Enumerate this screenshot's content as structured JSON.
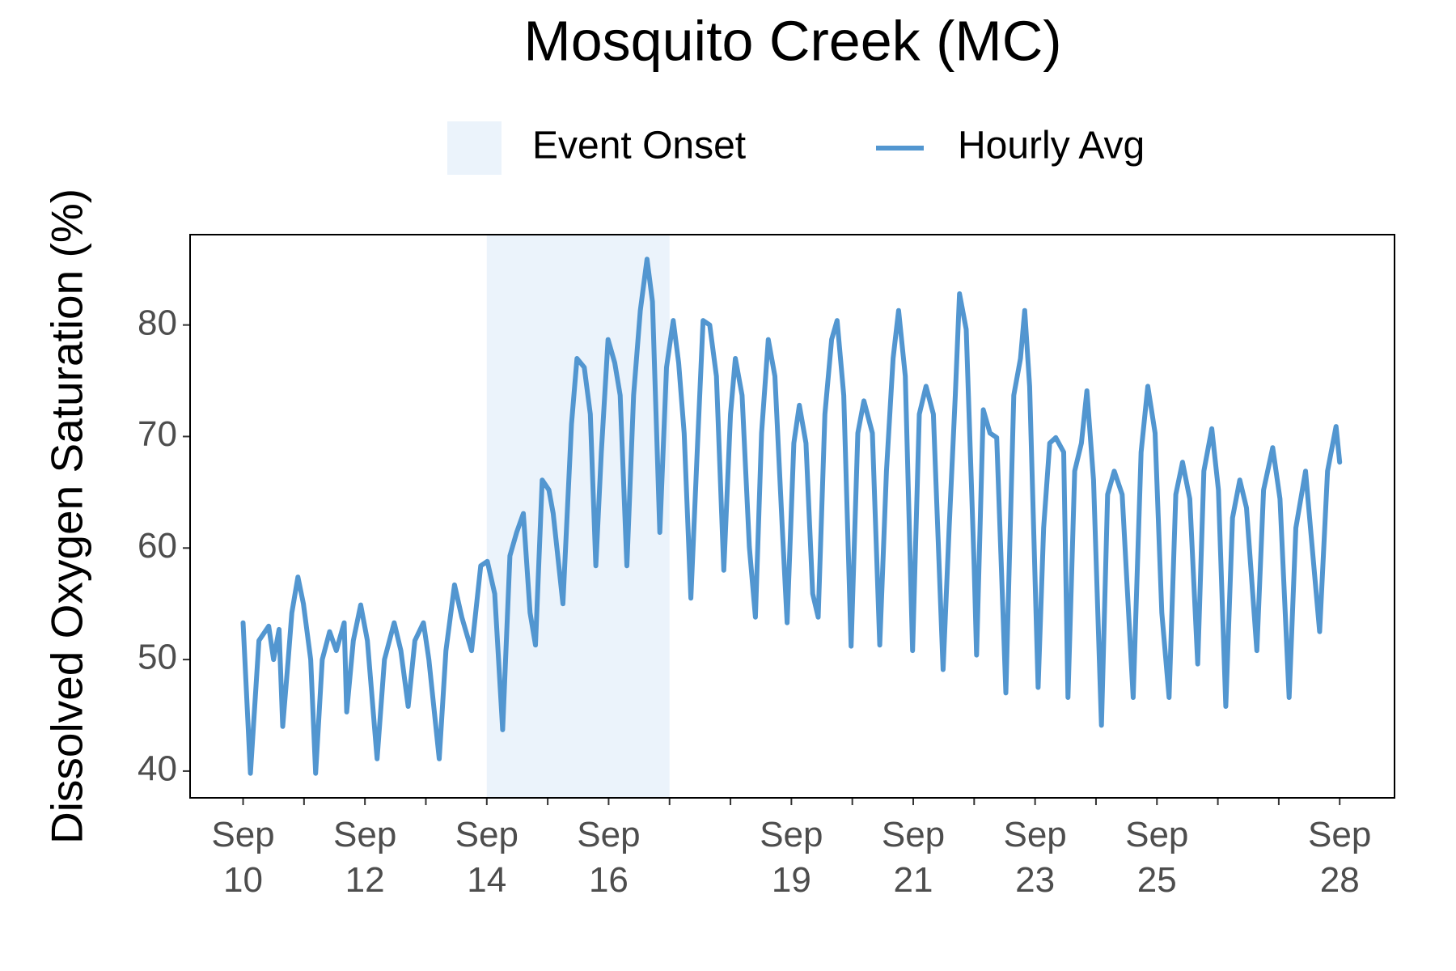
{
  "chart_data": {
    "type": "line",
    "title": "Mosquito Creek (MC)",
    "ylabel": "Dissolved Oxygen Saturation (%)",
    "legend": "top",
    "grid": false,
    "spans": [
      {
        "name": "Event Onset",
        "color": "#ebf3fb",
        "x": [
          14,
          17
        ]
      }
    ],
    "x": [
      10.0,
      10.12,
      10.26,
      10.42,
      10.5,
      10.59,
      10.65,
      10.74,
      10.8,
      10.9,
      10.99,
      11.11,
      11.19,
      11.3,
      11.42,
      11.53,
      11.66,
      11.7,
      11.81,
      11.93,
      12.04,
      12.2,
      12.32,
      12.48,
      12.59,
      12.71,
      12.82,
      12.96,
      13.05,
      13.22,
      13.33,
      13.47,
      13.59,
      13.75,
      13.9,
      14.01,
      14.13,
      14.26,
      14.38,
      14.49,
      14.6,
      14.71,
      14.8,
      14.91,
      15.02,
      15.09,
      15.25,
      15.39,
      15.48,
      15.6,
      15.7,
      15.79,
      15.88,
      15.99,
      16.1,
      16.19,
      16.3,
      16.41,
      16.52,
      16.63,
      16.72,
      16.84,
      16.95,
      17.06,
      17.15,
      17.24,
      17.35,
      17.46,
      17.55,
      17.66,
      17.77,
      17.89,
      18.0,
      18.08,
      18.19,
      18.31,
      18.41,
      18.51,
      18.62,
      18.73,
      18.85,
      18.93,
      19.04,
      19.13,
      19.24,
      19.35,
      19.44,
      19.55,
      19.66,
      19.75,
      19.86,
      19.98,
      20.09,
      20.19,
      20.33,
      20.45,
      20.56,
      20.67,
      20.76,
      20.87,
      20.99,
      21.1,
      21.21,
      21.33,
      21.49,
      21.59,
      21.69,
      21.76,
      21.87,
      22.0,
      22.04,
      22.15,
      22.26,
      22.37,
      22.52,
      22.65,
      22.76,
      22.83,
      22.91,
      23.05,
      23.14,
      23.24,
      23.34,
      23.47,
      23.54,
      23.65,
      23.76,
      23.85,
      23.96,
      24.09,
      24.19,
      24.3,
      24.43,
      24.61,
      24.74,
      24.85,
      24.97,
      25.08,
      25.2,
      25.31,
      25.42,
      25.54,
      25.67,
      25.77,
      25.9,
      26.01,
      26.13,
      26.24,
      26.36,
      26.47,
      26.64,
      26.75,
      26.9,
      27.02,
      27.17,
      27.28,
      27.44,
      27.52,
      27.67,
      27.8,
      27.94,
      28.0
    ],
    "series": [
      {
        "name": "Hourly Avg",
        "color": "#5296d0",
        "values": [
          53.3,
          39.8,
          51.7,
          53,
          50,
          52.7,
          44,
          50,
          54.2,
          57.4,
          55,
          50,
          39.8,
          50,
          52.5,
          50.8,
          53.3,
          45.3,
          51.7,
          54.9,
          51.7,
          41.1,
          50,
          53.3,
          50.8,
          45.8,
          51.7,
          53.3,
          50,
          41.1,
          50.8,
          56.7,
          53.8,
          50.8,
          58.4,
          58.8,
          55.9,
          43.7,
          59.3,
          61.4,
          63.1,
          54.2,
          51.3,
          66.1,
          65.2,
          63.1,
          55,
          71.1,
          77,
          76.2,
          72,
          58.4,
          68.6,
          78.7,
          76.6,
          73.7,
          58.4,
          73.7,
          81.3,
          85.9,
          82.1,
          61.4,
          76.2,
          80.4,
          76.6,
          70.3,
          55.5,
          69.4,
          80.4,
          80,
          75.4,
          58,
          72,
          77,
          73.7,
          60.1,
          53.8,
          70.3,
          78.7,
          75.4,
          61.8,
          53.3,
          69.4,
          72.8,
          69.4,
          55.9,
          53.8,
          72,
          78.7,
          80.4,
          73.7,
          51.2,
          70.3,
          73.2,
          70.3,
          51.3,
          66.9,
          77,
          81.3,
          75.4,
          50.8,
          72,
          74.5,
          72,
          49.1,
          61.8,
          73.7,
          82.8,
          79.6,
          58.4,
          50.4,
          72.4,
          70.3,
          69.9,
          47,
          73.7,
          77,
          81.3,
          74.5,
          47.5,
          61.8,
          69.4,
          69.9,
          68.6,
          46.6,
          66.9,
          69.4,
          74.1,
          66.1,
          44.1,
          64.8,
          66.9,
          64.8,
          46.6,
          68.6,
          74.5,
          70.3,
          54.2,
          46.6,
          64.8,
          67.7,
          64.4,
          49.6,
          66.9,
          70.7,
          65.2,
          45.8,
          62.7,
          66.1,
          63.6,
          50.8,
          65.2,
          69,
          64.4,
          46.6,
          61.8,
          66.9,
          61.8,
          52.5,
          66.9,
          70.9,
          67.7
        ]
      }
    ],
    "xlim": [
      9.13,
      28.9
    ],
    "xticks": [
      {
        "value": 10,
        "label": "Sep 10"
      },
      {
        "value": 11,
        "label": null
      },
      {
        "value": 12,
        "label": "Sep 12"
      },
      {
        "value": 13,
        "label": null
      },
      {
        "value": 14,
        "label": "Sep 14"
      },
      {
        "value": 15,
        "label": null
      },
      {
        "value": 16,
        "label": "Sep 16"
      },
      {
        "value": 17,
        "label": null
      },
      {
        "value": 18,
        "label": null
      },
      {
        "value": 19,
        "label": "Sep 19"
      },
      {
        "value": 20,
        "label": null
      },
      {
        "value": 21,
        "label": "Sep 21"
      },
      {
        "value": 22,
        "label": null
      },
      {
        "value": 23,
        "label": "Sep 23"
      },
      {
        "value": 24,
        "label": null
      },
      {
        "value": 25,
        "label": "Sep 25"
      },
      {
        "value": 26,
        "label": null
      },
      {
        "value": 27,
        "label": null
      },
      {
        "value": 28,
        "label": "Sep 28"
      }
    ],
    "ylim": [
      37.6,
      88.1
    ],
    "yticks": [
      40,
      50,
      60,
      70,
      80
    ]
  }
}
